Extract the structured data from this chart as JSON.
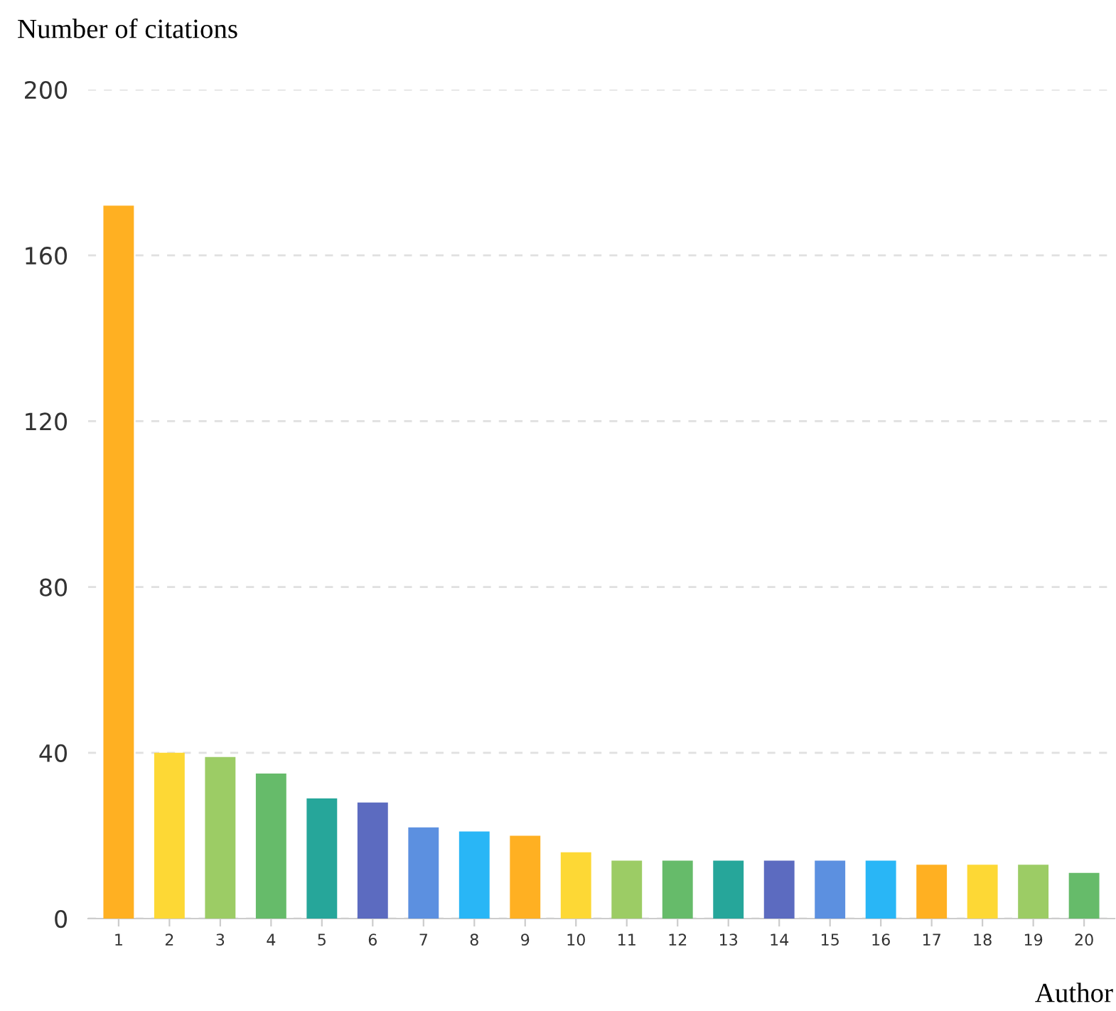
{
  "chart_data": {
    "type": "bar",
    "ylabel": "Number of citations",
    "xlabel": "Author",
    "categories": [
      "1",
      "2",
      "3",
      "4",
      "5",
      "6",
      "7",
      "8",
      "9",
      "10",
      "11",
      "12",
      "13",
      "14",
      "15",
      "16",
      "17",
      "18",
      "19",
      "20"
    ],
    "values": [
      172,
      40,
      39,
      35,
      29,
      28,
      22,
      21,
      20,
      16,
      14,
      14,
      14,
      14,
      14,
      14,
      13,
      13,
      13,
      11
    ],
    "colors": [
      "#ffb022",
      "#fdd835",
      "#9ccc65",
      "#66bb6a",
      "#26a69a",
      "#5c6bc0",
      "#5c90e0",
      "#29b6f6",
      "#ffb022",
      "#fdd835",
      "#9ccc65",
      "#66bb6a",
      "#26a69a",
      "#5c6bc0",
      "#5c90e0",
      "#29b6f6",
      "#ffb022",
      "#fdd835",
      "#9ccc65",
      "#66bb6a"
    ],
    "ylim": [
      0,
      200
    ],
    "yticks": [
      0,
      40,
      80,
      120,
      160,
      200
    ],
    "grid": "y",
    "legend": false
  }
}
